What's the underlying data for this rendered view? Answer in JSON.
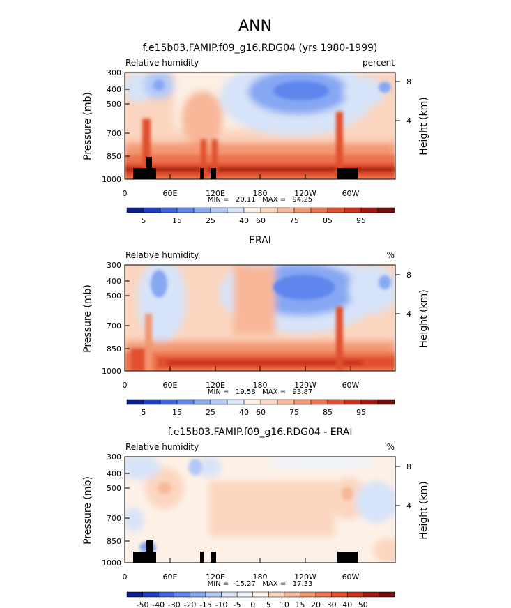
{
  "page_title": "ANN",
  "chart_data": [
    {
      "type": "heatmap",
      "title": "f.e15b03.FAMIP.f09_g16.RDG04 (yrs 1980-1999)",
      "left_label": "Relative humidity",
      "right_label": "percent",
      "ylabel": "Pressure (mb)",
      "y2label": "Height (km)",
      "xticks": [
        "0",
        "60E",
        "120E",
        "180",
        "120W",
        "60W"
      ],
      "yticks": [
        "300",
        "400",
        "500",
        "700",
        "850",
        "1000"
      ],
      "y2ticks": [
        "8",
        "4"
      ],
      "stats": "MIN =   20.11   MAX =   94.25",
      "colorbar": {
        "colors": [
          "#0a1f8f",
          "#1f3fc4",
          "#3d63e0",
          "#5f86ec",
          "#86a7f2",
          "#b2c9f7",
          "#d7e3f8",
          "#fcefe4",
          "#fbd5bf",
          "#f8b799",
          "#f39672",
          "#ec7450",
          "#e0502f",
          "#c9301b",
          "#a21b11",
          "#730d0a"
        ],
        "labels": [
          "5",
          "15",
          "25",
          "40",
          "60",
          "75",
          "85",
          "95"
        ]
      }
    },
    {
      "type": "heatmap",
      "title": "ERAI",
      "left_label": "Relative humidity",
      "right_label": "%",
      "ylabel": "Pressure (mb)",
      "y2label": "Height (km)",
      "xticks": [
        "0",
        "60E",
        "120E",
        "180",
        "120W",
        "60W"
      ],
      "yticks": [
        "300",
        "400",
        "500",
        "700",
        "850",
        "1000"
      ],
      "y2ticks": [
        "8",
        "4"
      ],
      "stats": "MIN =   19.58   MAX =   93.87",
      "colorbar": {
        "colors": [
          "#0a1f8f",
          "#1f3fc4",
          "#3d63e0",
          "#5f86ec",
          "#86a7f2",
          "#b2c9f7",
          "#d7e3f8",
          "#fcefe4",
          "#fbd5bf",
          "#f8b799",
          "#f39672",
          "#ec7450",
          "#e0502f",
          "#c9301b",
          "#a21b11",
          "#730d0a"
        ],
        "labels": [
          "5",
          "15",
          "25",
          "40",
          "60",
          "75",
          "85",
          "95"
        ]
      }
    },
    {
      "type": "heatmap",
      "title": "f.e15b03.FAMIP.f09_g16.RDG04 - ERAI",
      "left_label": "Relative humidity",
      "right_label": "%",
      "ylabel": "Pressure (mb)",
      "y2label": "Height (km)",
      "xticks": [
        "0",
        "60E",
        "120E",
        "180",
        "120W",
        "60W"
      ],
      "yticks": [
        "300",
        "400",
        "500",
        "700",
        "850",
        "1000"
      ],
      "y2ticks": [
        "8",
        "4"
      ],
      "stats": "MIN =  -15.27   MAX =   17.33",
      "colorbar": {
        "colors": [
          "#0a1f8f",
          "#1f3fc4",
          "#3d63e0",
          "#5f86ec",
          "#86a7f2",
          "#b2c9f7",
          "#d7e3f8",
          "#eef3fb",
          "#fdf1e7",
          "#fbd5bf",
          "#f8b799",
          "#f39672",
          "#ec7450",
          "#e0502f",
          "#c9301b",
          "#a21b11",
          "#730d0a"
        ],
        "labels": [
          "-50",
          "-40",
          "-30",
          "-20",
          "-15",
          "-10",
          "-5",
          "0",
          "5",
          "10",
          "15",
          "20",
          "30",
          "40",
          "50"
        ]
      }
    }
  ]
}
